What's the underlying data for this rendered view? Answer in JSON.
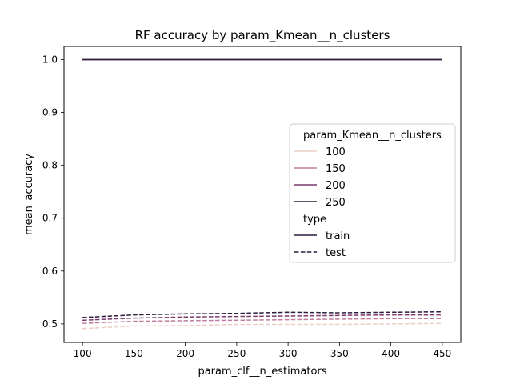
{
  "chart_data": {
    "type": "line",
    "title": "RF accuracy by param_Kmean__n_clusters",
    "xlabel": "param_clf__n_estimators",
    "ylabel": "mean_accuracy",
    "x": [
      100,
      150,
      200,
      250,
      300,
      350,
      400,
      450
    ],
    "xlim": [
      82,
      468
    ],
    "ylim": [
      0.465,
      1.025
    ],
    "xticks": [
      100,
      150,
      200,
      250,
      300,
      350,
      400,
      450
    ],
    "xtick_labels": [
      "100",
      "150",
      "200",
      "250",
      "300",
      "350",
      "400",
      "450"
    ],
    "yticks": [
      0.5,
      0.6,
      0.7,
      0.8,
      0.9,
      1.0
    ],
    "ytick_labels": [
      "0.5",
      "0.6",
      "0.7",
      "0.8",
      "0.9",
      "1.0"
    ],
    "grid": false,
    "legend_position": "right",
    "legend": {
      "hue_title": "param_Kmean__n_clusters",
      "hue_entries": [
        {
          "label": "100",
          "color": "#ebcfc7"
        },
        {
          "label": "150",
          "color": "#c17d9b"
        },
        {
          "label": "200",
          "color": "#7a3a6e"
        },
        {
          "label": "250",
          "color": "#2b1b3d"
        }
      ],
      "style_title": "type",
      "style_entries": [
        {
          "label": "train",
          "dash": "solid"
        },
        {
          "label": "test",
          "dash": "dashed"
        }
      ]
    },
    "series": [
      {
        "clusters": "100",
        "type": "train",
        "color": "#ebcfc7",
        "dash": "solid",
        "values": [
          1.0,
          1.0,
          1.0,
          1.0,
          1.0,
          1.0,
          1.0,
          1.0
        ]
      },
      {
        "clusters": "150",
        "type": "train",
        "color": "#c17d9b",
        "dash": "solid",
        "values": [
          1.0,
          1.0,
          1.0,
          1.0,
          1.0,
          1.0,
          1.0,
          1.0
        ]
      },
      {
        "clusters": "200",
        "type": "train",
        "color": "#7a3a6e",
        "dash": "solid",
        "values": [
          1.0,
          1.0,
          1.0,
          1.0,
          1.0,
          1.0,
          1.0,
          1.0
        ]
      },
      {
        "clusters": "250",
        "type": "train",
        "color": "#2b1b3d",
        "dash": "solid",
        "values": [
          1.0,
          1.0,
          1.0,
          1.0,
          1.0,
          1.0,
          1.0,
          1.0
        ]
      },
      {
        "clusters": "100",
        "type": "test",
        "color": "#ebcfc7",
        "dash": "dashed",
        "values": [
          0.491,
          0.496,
          0.497,
          0.499,
          0.499,
          0.499,
          0.5,
          0.501
        ]
      },
      {
        "clusters": "150",
        "type": "test",
        "color": "#c17d9b",
        "dash": "dashed",
        "values": [
          0.501,
          0.505,
          0.506,
          0.507,
          0.508,
          0.509,
          0.51,
          0.51
        ]
      },
      {
        "clusters": "200",
        "type": "test",
        "color": "#7a3a6e",
        "dash": "dashed",
        "values": [
          0.507,
          0.511,
          0.513,
          0.514,
          0.515,
          0.516,
          0.517,
          0.517
        ]
      },
      {
        "clusters": "250",
        "type": "test",
        "color": "#2b1b3d",
        "dash": "dashed",
        "values": [
          0.512,
          0.517,
          0.519,
          0.52,
          0.522,
          0.521,
          0.522,
          0.523
        ]
      }
    ]
  }
}
